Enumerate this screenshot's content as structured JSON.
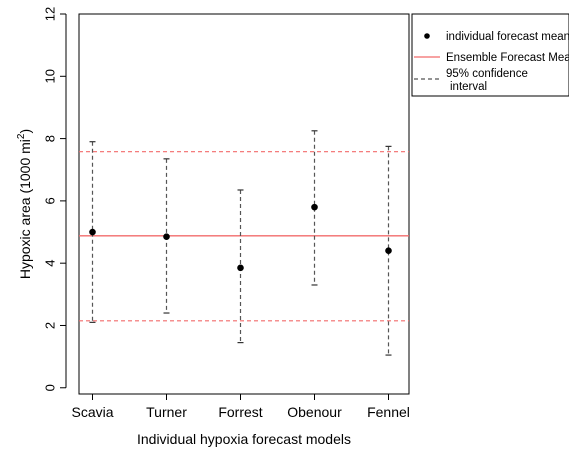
{
  "chart_data": {
    "type": "scatter",
    "title": "",
    "xlabel": "Individual hypoxia forecast models",
    "ylabel": "Hypoxic area (1000 mi",
    "ylabel_sup": "2",
    "ylabel_close": ")",
    "ylim": [
      -0.2,
      12
    ],
    "yticks": [
      0,
      2,
      4,
      6,
      8,
      10,
      12
    ],
    "categories": [
      "Scavia",
      "Turner",
      "Forrest",
      "Obenour",
      "Fennel"
    ],
    "series": [
      {
        "name": "individual forecast mean",
        "values": [
          5.0,
          4.85,
          3.85,
          5.8,
          4.4
        ],
        "ci_low": [
          2.1,
          2.4,
          1.45,
          3.3,
          1.05
        ],
        "ci_high": [
          7.9,
          7.35,
          6.35,
          8.25,
          7.75
        ]
      }
    ],
    "ensemble_mean": 4.88,
    "ensemble_ci": [
      2.15,
      7.58
    ],
    "grid": false,
    "legend": {
      "placement": "top-right",
      "entries": [
        "individual forecast mean",
        "Ensemble Forecast Mean",
        "95% confidence",
        "interval"
      ]
    },
    "colors": {
      "ensemble": "#f26b6b",
      "points": "#000000",
      "ci": "#555555"
    }
  }
}
